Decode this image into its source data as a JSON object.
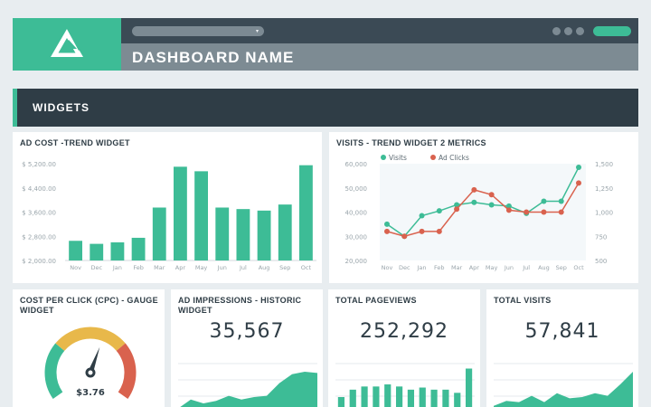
{
  "header": {
    "title": "DASHBOARD NAME",
    "caret": "▾",
    "colors": {
      "accent": "#3dbc96",
      "topbar": "#3b4a55",
      "titlebar": "#7d8b93"
    }
  },
  "section": {
    "title": "WIDGETS"
  },
  "widgets": {
    "ad_cost": {
      "title": "AD COST -TREND WIDGET"
    },
    "visits": {
      "title": "VISITS - TREND WIDGET 2 METRICS"
    },
    "cpc": {
      "title": "COST PER CLICK (CPC) - GAUGE WIDGET",
      "value": "$3.76"
    },
    "impressions": {
      "title": "AD IMPRESSIONS - HISTORIC WIDGET",
      "value": "35,567"
    },
    "pageviews": {
      "title": "TOTAL PAGEVIEWS",
      "value": "252,292"
    },
    "total_visits": {
      "title": "TOTAL VISITS",
      "value": "57,841"
    }
  },
  "chart_data": [
    {
      "type": "bar",
      "categories": [
        "Nov",
        "Dec",
        "Jan",
        "Feb",
        "Mar",
        "Apr",
        "May",
        "Jun",
        "Jul",
        "Aug",
        "Sep",
        "Oct"
      ],
      "values": [
        2650,
        2550,
        2600,
        2750,
        3750,
        5100,
        4950,
        3750,
        3700,
        3650,
        3850,
        5150
      ],
      "ylim": [
        2000,
        5200
      ],
      "yticks": [
        "$ 5,200.00",
        "$ 4,400.00",
        "$ 3,600.00",
        "$ 2,800.00",
        "$ 2,000.00"
      ],
      "ytick_values": [
        5200,
        4400,
        3600,
        2800,
        2000
      ],
      "color": "#3dbc96"
    },
    {
      "type": "line",
      "categories": [
        "Nov",
        "Dec",
        "Jan",
        "Feb",
        "Mar",
        "Apr",
        "May",
        "Jun",
        "Jul",
        "Aug",
        "Sep",
        "Oct"
      ],
      "series": [
        {
          "name": "Visits",
          "axis": "left",
          "color": "#3dbc96",
          "values": [
            35000,
            30000,
            38500,
            40500,
            43000,
            44000,
            43000,
            42500,
            39500,
            44500,
            44500,
            58500
          ]
        },
        {
          "name": "Ad Clicks",
          "axis": "right",
          "color": "#d9624e",
          "values": [
            800,
            750,
            800,
            800,
            1030,
            1230,
            1180,
            1020,
            1000,
            1000,
            1000,
            1300
          ]
        }
      ],
      "ylim_left": [
        20000,
        60000
      ],
      "ylim_right": [
        500,
        1500
      ],
      "yticks_left": [
        "60,000",
        "50,000",
        "40,000",
        "30,000",
        "20,000"
      ],
      "yticks_left_values": [
        60000,
        50000,
        40000,
        30000,
        20000
      ],
      "yticks_right": [
        "1,500",
        "1,250",
        "1,000",
        "750",
        "500"
      ],
      "yticks_right_values": [
        1500,
        1250,
        1000,
        750,
        500
      ],
      "legend_position": "top-left"
    },
    {
      "type": "gauge",
      "value": 3.76,
      "fraction": 0.58,
      "segments": [
        {
          "color": "#3dbc96",
          "from": 0,
          "to": 0.3
        },
        {
          "color": "#e8b84a",
          "from": 0.3,
          "to": 0.7
        },
        {
          "color": "#d9624e",
          "from": 0.7,
          "to": 1
        }
      ]
    },
    {
      "type": "area",
      "values": [
        6,
        13,
        10,
        12,
        16,
        13,
        15,
        16,
        26,
        33,
        35,
        34
      ],
      "ylim": [
        0,
        50
      ],
      "color": "#3dbc96"
    },
    {
      "type": "bar",
      "values": [
        18,
        25,
        28,
        28,
        30,
        28,
        25,
        27,
        25,
        25,
        22,
        45
      ],
      "ylim": [
        0,
        60
      ],
      "color": "#3dbc96"
    },
    {
      "type": "area",
      "values": [
        8,
        12,
        11,
        16,
        11,
        18,
        14,
        15,
        18,
        16,
        25,
        35
      ],
      "ylim": [
        0,
        50
      ],
      "color": "#3dbc96"
    }
  ]
}
